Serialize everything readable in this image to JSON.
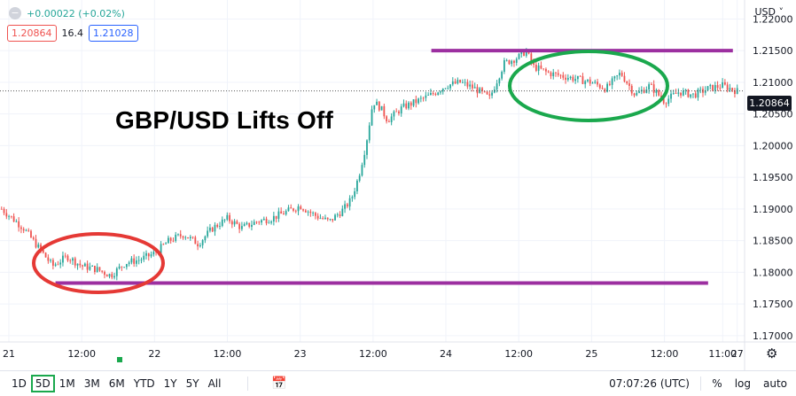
{
  "legend": {
    "change": "+0.00022 (+0.02%)",
    "bid": "1.20864",
    "spread": "16.4",
    "ask": "1.21028"
  },
  "title_text": "GBP/USD Lifts Off",
  "currency": "USD ˅",
  "last_price": "1.20864",
  "toolbar": {
    "ranges": [
      "1D",
      "5D",
      "1M",
      "3M",
      "6M",
      "YTD",
      "1Y",
      "5Y",
      "All"
    ],
    "active_range": "5D",
    "time": "07:07:26 (UTC)",
    "percent": "%",
    "log": "log",
    "auto": "auto"
  },
  "colors": {
    "up": "#26a69a",
    "down": "#ef5350",
    "support_resistance": "#9c2fa0",
    "ellipse_low": "#e53935",
    "ellipse_high": "#1aa84d"
  },
  "chart_data": {
    "type": "line",
    "symbol": "GBP/USD",
    "y_tick_labels": [
      "1.22000",
      "1.21500",
      "1.21000",
      "1.20500",
      "1.20000",
      "1.19500",
      "1.19000",
      "1.18500",
      "1.18000",
      "1.17500",
      "1.17000"
    ],
    "ylim": [
      1.169,
      1.223
    ],
    "x_tick_labels": [
      "21",
      "12:00",
      "22",
      "12:00",
      "23",
      "12:00",
      "24",
      "12:00",
      "25",
      "12:00",
      "11:00",
      "27"
    ],
    "x_ticks_t": [
      0.0,
      0.5,
      1.0,
      1.5,
      2.0,
      2.5,
      3.0,
      3.5,
      4.0,
      4.5,
      4.9,
      5.0
    ],
    "xlim": [
      0.0,
      5.02
    ],
    "series": [
      {
        "x": [
          -0.05,
          0.1,
          0.2,
          0.3,
          0.4,
          0.5,
          0.6,
          0.7,
          0.8,
          0.9,
          1.0,
          1.1,
          1.2,
          1.3,
          1.4,
          1.5,
          1.6,
          1.7,
          1.8,
          1.9,
          2.0,
          2.1,
          2.2,
          2.3,
          2.35,
          2.4,
          2.45,
          2.5,
          2.55,
          2.6,
          2.7,
          2.8,
          2.9,
          3.0,
          3.1,
          3.2,
          3.3,
          3.4,
          3.5,
          3.55,
          3.6,
          3.7,
          3.8,
          3.9,
          4.0,
          4.1,
          4.2,
          4.3,
          4.4,
          4.5,
          4.6,
          4.7,
          4.8,
          4.9,
          5.0
        ],
        "values": [
          1.19,
          1.187,
          1.184,
          1.181,
          1.1825,
          1.181,
          1.1805,
          1.1795,
          1.1815,
          1.182,
          1.183,
          1.185,
          1.186,
          1.1845,
          1.187,
          1.1885,
          1.187,
          1.188,
          1.1885,
          1.1895,
          1.1905,
          1.189,
          1.188,
          1.19,
          1.1915,
          1.195,
          1.2,
          1.207,
          1.206,
          1.204,
          1.206,
          1.207,
          1.208,
          1.2095,
          1.21,
          1.209,
          1.2075,
          1.213,
          1.214,
          1.215,
          1.2125,
          1.2115,
          1.211,
          1.2105,
          1.21,
          1.209,
          1.2115,
          1.208,
          1.2095,
          1.207,
          1.2085,
          1.208,
          1.209,
          1.2095,
          1.2086
        ]
      }
    ],
    "resistance_level": 1.215,
    "resistance_range": [
      2.9,
      4.97
    ],
    "support_level": 1.1783,
    "support_range": [
      0.32,
      4.8
    ],
    "grid": true
  }
}
